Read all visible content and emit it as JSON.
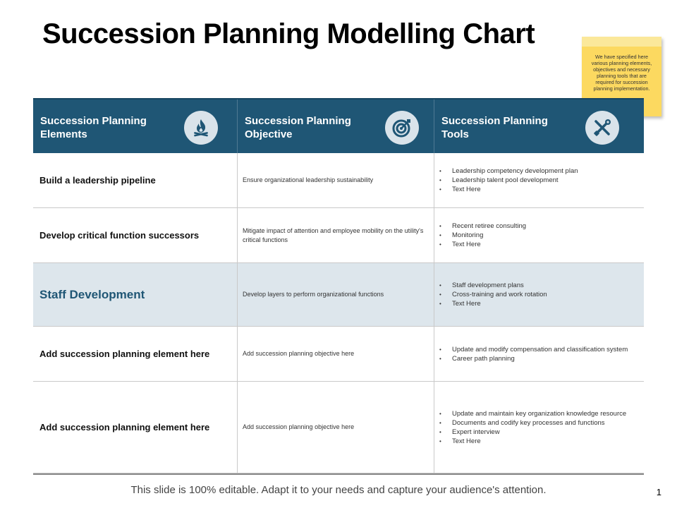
{
  "title": "Succession Planning Modelling Chart",
  "sticky_note": "We have specified here various planning elements, objectives and necessary planning tools that are required for succession planning implementation.",
  "colors": {
    "header_bg": "#1f5675",
    "highlight_row": "#dde6ec",
    "note": "#fcd960"
  },
  "table": {
    "headers": [
      {
        "label": "Succession Planning Elements",
        "icon": "fire-icon"
      },
      {
        "label": "Succession Planning Objective",
        "icon": "target-icon"
      },
      {
        "label": "Succession Planning Tools",
        "icon": "tools-icon"
      }
    ],
    "rows": [
      {
        "element": "Build a leadership pipeline",
        "objective": "Ensure organizational leadership sustainability",
        "tools": [
          "Leadership competency development plan",
          "Leadership talent pool development",
          "Text Here"
        ]
      },
      {
        "element": "Develop critical function successors",
        "objective": "Mitigate impact of attention and employee mobility on the utility's critical functions",
        "tools": [
          "Recent retiree consulting",
          "Monitoring",
          "Text Here"
        ]
      },
      {
        "element": "Staff Development",
        "objective": "Develop layers to perform organizational functions",
        "tools": [
          "Staff development plans",
          "Cross-training and work rotation",
          "Text Here"
        ]
      },
      {
        "element": "Add succession planning element here",
        "objective": "Add succession planning objective here",
        "tools": [
          "Update and modify compensation and classification system",
          "Career path planning"
        ]
      },
      {
        "element": "Add succession planning element here",
        "objective": "Add succession planning objective here",
        "tools": [
          "Update and maintain key organization knowledge resource",
          "Documents and codify key processes and functions",
          "Expert interview",
          "Text Here"
        ]
      }
    ]
  },
  "footer": "This slide is 100% editable. Adapt it to your needs and capture your audience's attention.",
  "page_number": "1"
}
